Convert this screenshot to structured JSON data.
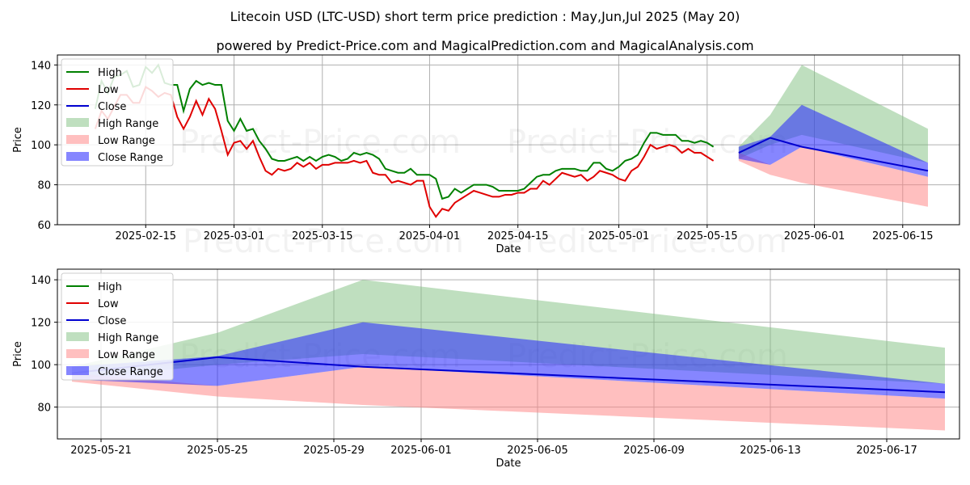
{
  "header": {
    "title": "Litecoin USD (LTC-USD) short term price prediction : May,Jun,Jul 2025 (May 20)",
    "subtitle": "powered by Predict-Price.com and MagicalPrediction.com and MagicalAnalysis.com"
  },
  "watermark": "Predict-Price.com",
  "colors": {
    "high": "#008000",
    "low": "#e00000",
    "close": "#0000d0",
    "high_range": "#7fbf7f",
    "low_range": "#ff8080",
    "close_range": "#2222ff"
  },
  "legend": {
    "high": "High",
    "low": "Low",
    "close": "Close",
    "high_range": "High Range",
    "low_range": "Low Range",
    "close_range": "Close Range"
  },
  "chart_data": [
    {
      "type": "line",
      "xlabel": "Date",
      "ylabel": "Price",
      "xlim": [
        "2025-02-01",
        "2025-06-24"
      ],
      "ylim": [
        60,
        145
      ],
      "grid": true,
      "legend_position": "top-left",
      "x_ticks": [
        "2025-02-15",
        "2025-03-01",
        "2025-03-15",
        "2025-04-01",
        "2025-04-15",
        "2025-05-01",
        "2025-05-15",
        "2025-06-01",
        "2025-06-15"
      ],
      "y_ticks": [
        60,
        80,
        100,
        120,
        140
      ],
      "history_start": "2025-02-07",
      "history": {
        "high": [
          118,
          132,
          126,
          134,
          135,
          137,
          129,
          130,
          139,
          136,
          140,
          131,
          130,
          130,
          117,
          128,
          132,
          130,
          131,
          130,
          130,
          112,
          107,
          113,
          107,
          108,
          102,
          98,
          93,
          92,
          92,
          93,
          94,
          92,
          94,
          92,
          94,
          95,
          94,
          92,
          93,
          96,
          95,
          96,
          95,
          93,
          88,
          87,
          86,
          86,
          88,
          85,
          85,
          85,
          83,
          73,
          74,
          78,
          76,
          78,
          80,
          80,
          80,
          79,
          77,
          77,
          77,
          77,
          78,
          81,
          84,
          85,
          85,
          87,
          88,
          88,
          88,
          87,
          87,
          91,
          91,
          88,
          87,
          89,
          92,
          93,
          95,
          101,
          106,
          106,
          105,
          105,
          105,
          102,
          102,
          101,
          102,
          101,
          99
        ],
        "low": [
          108,
          117,
          113,
          119,
          125,
          125,
          121,
          121,
          129,
          127,
          124,
          126,
          125,
          114,
          108,
          114,
          122,
          115,
          123,
          118,
          107,
          95,
          101,
          102,
          98,
          102,
          94,
          87,
          85,
          88,
          87,
          88,
          91,
          89,
          91,
          88,
          90,
          90,
          91,
          91,
          91,
          92,
          91,
          92,
          86,
          85,
          85,
          81,
          82,
          81,
          80,
          82,
          82,
          69,
          64,
          68,
          67,
          71,
          73,
          75,
          77,
          76,
          75,
          74,
          74,
          75,
          75,
          76,
          76,
          78,
          78,
          82,
          80,
          83,
          86,
          85,
          84,
          85,
          82,
          84,
          87,
          86,
          85,
          83,
          82,
          87,
          89,
          94,
          100,
          98,
          99,
          100,
          99,
          96,
          98,
          96,
          96,
          94,
          92
        ]
      },
      "forecast_dates": [
        "2025-05-20",
        "2025-05-25",
        "2025-05-30",
        "2025-06-19"
      ],
      "forecast": {
        "close": [
          96,
          103.5,
          99,
          87
        ],
        "high_range": [
          [
            93,
            99
          ],
          [
            100,
            115
          ],
          [
            105,
            140
          ],
          [
            91,
            108
          ]
        ],
        "low_range": [
          [
            92,
            96
          ],
          [
            85,
            90
          ],
          [
            81,
            99
          ],
          [
            69,
            84
          ]
        ],
        "close_range": [
          [
            93,
            99
          ],
          [
            90,
            104
          ],
          [
            99,
            120
          ],
          [
            84,
            91
          ]
        ]
      }
    },
    {
      "type": "line",
      "xlabel": "Date",
      "ylabel": "Price",
      "xlim": [
        "2025-05-19 12:00",
        "2025-06-19 12:00"
      ],
      "ylim": [
        65,
        145
      ],
      "grid": true,
      "legend_position": "top-left",
      "x_ticks": [
        "2025-05-21",
        "2025-05-25",
        "2025-05-29",
        "2025-06-01",
        "2025-06-05",
        "2025-06-09",
        "2025-06-13",
        "2025-06-17"
      ],
      "y_ticks": [
        80,
        100,
        120,
        140
      ],
      "forecast_dates": [
        "2025-05-20",
        "2025-05-25",
        "2025-05-30",
        "2025-06-19"
      ],
      "forecast": {
        "close": [
          96,
          103.5,
          99,
          87
        ],
        "high_range": [
          [
            93,
            99
          ],
          [
            100,
            115
          ],
          [
            105,
            140
          ],
          [
            91,
            108
          ]
        ],
        "low_range": [
          [
            92,
            96
          ],
          [
            85,
            90
          ],
          [
            81,
            99
          ],
          [
            69,
            84
          ]
        ],
        "close_range": [
          [
            93,
            99
          ],
          [
            90,
            104
          ],
          [
            99,
            120
          ],
          [
            84,
            91
          ]
        ]
      }
    }
  ]
}
